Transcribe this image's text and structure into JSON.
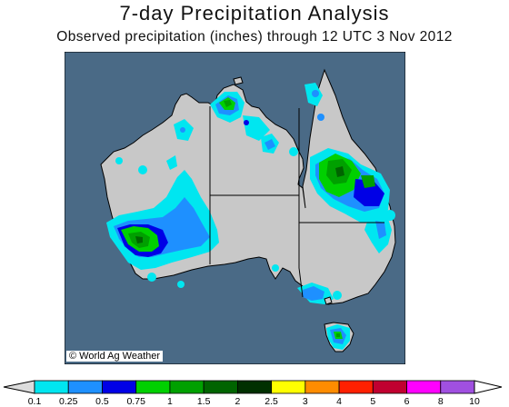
{
  "title": "7-day Precipitation Analysis",
  "subtitle": "Observed precipitation (inches) through 12 UTC 3 Nov 2012",
  "credit": "© World Ag Weather",
  "colors": {
    "ocean": "#4a6a86",
    "land_dry": "#c8c8c8",
    "borders": "#000000"
  },
  "legend": {
    "labels": [
      "0.1",
      "0.25",
      "0.5",
      "0.75",
      "1",
      "1.5",
      "2",
      "2.5",
      "3",
      "4",
      "5",
      "6",
      "8",
      "10"
    ],
    "colors": [
      "#00e6f0",
      "#1e90ff",
      "#0000e6",
      "#00d000",
      "#00a000",
      "#006400",
      "#003000",
      "#ffff00",
      "#ff8c00",
      "#ff2000",
      "#c00030",
      "#ff00ff",
      "#a050e0"
    ]
  }
}
